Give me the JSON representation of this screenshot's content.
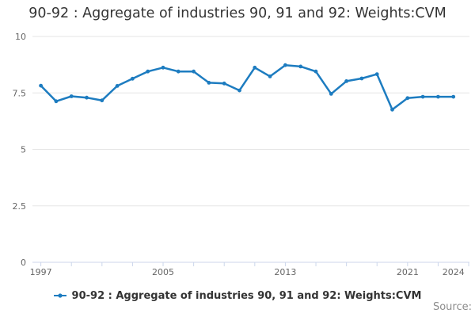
{
  "chart": {
    "title": "90-92 : Aggregate of industries 90, 91 and 92: Weights:CVM"
  },
  "chart_data": {
    "type": "line",
    "title": "90-92 : Aggregate of industries 90, 91 and 92: Weights:CVM",
    "xlabel": "",
    "ylabel": "",
    "x": [
      1997,
      1998,
      1999,
      2000,
      2001,
      2002,
      2003,
      2004,
      2005,
      2006,
      2007,
      2008,
      2009,
      2010,
      2011,
      2012,
      2013,
      2014,
      2015,
      2016,
      2017,
      2018,
      2019,
      2020,
      2021,
      2022,
      2023,
      2024
    ],
    "series": [
      {
        "name": "90-92 : Aggregate of industries 90, 91 and 92: Weights:CVM",
        "values": [
          7.82,
          7.13,
          7.35,
          7.29,
          7.17,
          7.81,
          8.13,
          8.45,
          8.62,
          8.45,
          8.45,
          7.95,
          7.92,
          7.61,
          8.62,
          8.23,
          8.73,
          8.67,
          8.45,
          7.46,
          8.02,
          8.14,
          8.33,
          6.76,
          7.27,
          7.33,
          7.33,
          7.33
        ],
        "color": "#1d7cc0"
      }
    ],
    "ylim": [
      0,
      10
    ],
    "yticks": [
      0,
      2.5,
      5,
      7.5,
      10
    ],
    "ytick_labels": [
      "0",
      "2.5",
      "5",
      "7.5",
      "10"
    ],
    "xticks": [
      1997,
      1999,
      2001,
      2003,
      2005,
      2007,
      2009,
      2011,
      2013,
      2015,
      2017,
      2019,
      2021,
      2023,
      2025
    ],
    "xtick_labels": [
      {
        "year": 1997,
        "label": "1997"
      },
      {
        "year": 2005,
        "label": "2005"
      },
      {
        "year": 2013,
        "label": "2013"
      },
      {
        "year": 2021,
        "label": "2021"
      },
      {
        "year": 2024,
        "label": "2024"
      }
    ],
    "grid": true,
    "legend_position": "bottom",
    "colors": {
      "gridline": "#e6e6e6",
      "axis_line": "#ccd6eb",
      "tick_label": "#666666",
      "title": "#333333",
      "source": "#8c8c8c"
    }
  },
  "legend": {
    "label": "90-92 : Aggregate of industries 90, 91 and 92: Weights:CVM"
  },
  "footer": {
    "source_label": "Source:"
  }
}
